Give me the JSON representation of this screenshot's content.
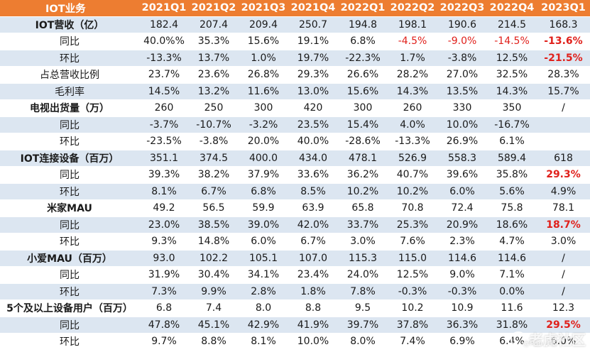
{
  "header": [
    "IOT业务",
    "2021Q1",
    "2021Q2",
    "2021Q3",
    "2021Q4",
    "2022Q1",
    "2022Q2",
    "2022Q3",
    "2022Q4",
    "2023Q1"
  ],
  "rows": [
    {
      "label": "IOT营收（亿）",
      "type": "metric",
      "values": [
        "182.4",
        "207.4",
        "209.4",
        "250.7",
        "194.8",
        "198.1",
        "190.6",
        "214.5",
        "168.3"
      ],
      "red": [],
      "redbold": []
    },
    {
      "label": "同比",
      "type": "sub",
      "values": [
        "40.0%%",
        "35.3%",
        "15.6%",
        "19.1%",
        "6.8%",
        "-4.5%",
        "-9.0%",
        "-14.5%",
        "-13.6%"
      ],
      "red": [
        5,
        6,
        7
      ],
      "redbold": [
        8
      ]
    },
    {
      "label": "环比",
      "type": "sub",
      "values": [
        "-13.3%",
        "13.7%",
        "1.0%",
        "19.7%",
        "-22.3%",
        "1.7%",
        "-3.8%",
        "12.5%",
        "-21.5%"
      ],
      "red": [],
      "redbold": [
        8
      ]
    },
    {
      "label": "占总营收比例",
      "type": "sub",
      "values": [
        "23.7%",
        "23.6%",
        "26.8%",
        "29.3%",
        "26.6%",
        "28.2%",
        "27.0%",
        "32.5%",
        "28.3%"
      ],
      "red": [],
      "redbold": []
    },
    {
      "label": "毛利率",
      "type": "sub",
      "values": [
        "14.5%",
        "13.2%",
        "11.6%",
        "13.0%",
        "15.6%",
        "14.3%",
        "13.5%",
        "14.3%",
        "15.7%"
      ],
      "red": [],
      "redbold": []
    },
    {
      "label": "电视出货量（万）",
      "type": "metric",
      "values": [
        "260",
        "250",
        "300",
        "420",
        "300",
        "260",
        "330",
        "350",
        "/"
      ],
      "red": [],
      "redbold": []
    },
    {
      "label": "同比",
      "type": "sub",
      "values": [
        "-3.7%",
        "-10.7%",
        "-3.2%",
        "23.5%",
        "15.4%",
        "4.0%",
        "10.0%",
        "-16.7%",
        ""
      ],
      "red": [],
      "redbold": []
    },
    {
      "label": "环比",
      "type": "sub",
      "values": [
        "-23.5%",
        "-3.8%",
        "20.0%",
        "40.0%",
        "-28.6%",
        "-13.3%",
        "26.9%",
        "6.1%",
        ""
      ],
      "red": [],
      "redbold": []
    },
    {
      "label": "IOT连接设备（百万）",
      "type": "metric",
      "values": [
        "351.1",
        "374.5",
        "400.0",
        "434.0",
        "478.1",
        "526.9",
        "558.3",
        "589.4",
        "618"
      ],
      "red": [],
      "redbold": []
    },
    {
      "label": "同比",
      "type": "sub",
      "values": [
        "39.3%",
        "38.2%",
        "37.9%",
        "33.6%",
        "36.2%",
        "40.7%",
        "39.6%",
        "35.8%",
        "29.3%"
      ],
      "red": [],
      "redbold": [
        8
      ]
    },
    {
      "label": "环比",
      "type": "sub",
      "values": [
        "8.1%",
        "6.7%",
        "6.8%",
        "8.5%",
        "10.2%",
        "10.2%",
        "6.0%",
        "5.6%",
        "4.9%"
      ],
      "red": [],
      "redbold": []
    },
    {
      "label": "米家MAU",
      "type": "metric",
      "values": [
        "49.2",
        "56.5",
        "59.9",
        "63.9",
        "65.8",
        "70.8",
        "72.4",
        "75.8",
        "78.1"
      ],
      "red": [],
      "redbold": []
    },
    {
      "label": "同比",
      "type": "sub",
      "values": [
        "23.0%",
        "38.5%",
        "39.0%",
        "42.0%",
        "33.7%",
        "25.3%",
        "20.9%",
        "18.6%",
        "18.7%"
      ],
      "red": [],
      "redbold": [
        8
      ]
    },
    {
      "label": "环比",
      "type": "sub",
      "values": [
        "9.3%",
        "14.8%",
        "6.0%",
        "6.7%",
        "3.0%",
        "7.6%",
        "2.3%",
        "4.7%",
        "3.0%"
      ],
      "red": [],
      "redbold": []
    },
    {
      "label": "小爱MAU（百万）",
      "type": "metric",
      "values": [
        "93.0",
        "102.2",
        "105.1",
        "107.0",
        "115.3",
        "115.0",
        "114.6",
        "114.6",
        "/"
      ],
      "red": [],
      "redbold": []
    },
    {
      "label": "同比",
      "type": "sub",
      "values": [
        "31.9%",
        "30.4%",
        "34.1%",
        "23.4%",
        "24.0%",
        "12.5%",
        "9.0%",
        "7.1%",
        "/"
      ],
      "red": [],
      "redbold": []
    },
    {
      "label": "环比",
      "type": "sub",
      "values": [
        "7.3%",
        "9.9%",
        "2.8%",
        "1.8%",
        "7.8%",
        "-0.3%",
        "-0.3%",
        "0.0%",
        "/"
      ],
      "red": [],
      "redbold": []
    },
    {
      "label": "5个及以上设备用户（百万）",
      "type": "metric",
      "values": [
        "6.8",
        "7.4",
        "8.0",
        "8.8",
        "9.5",
        "10.2",
        "10.9",
        "11.6",
        "12.3"
      ],
      "red": [],
      "redbold": []
    },
    {
      "label": "同比",
      "type": "sub",
      "values": [
        "47.8%",
        "45.1%",
        "42.9%",
        "41.9%",
        "39.7%",
        "37.8%",
        "36.3%",
        "31.8%",
        "29.5%"
      ],
      "red": [],
      "redbold": [
        8
      ]
    },
    {
      "label": "环比",
      "type": "sub",
      "values": [
        "9.7%",
        "8.8%",
        "8.1%",
        "10.0%",
        "8.0%",
        "7.4%",
        "6.9%",
        "6.4%",
        "6.0%"
      ],
      "red": [],
      "redbold": []
    }
  ],
  "watermark": {
    "main": "老虎社区",
    "sub": "@Pan··GK"
  },
  "colors": {
    "header_bg": "#ed7d31",
    "shaded_bg": "#dce6f1",
    "negative_red": "#e0201b"
  }
}
